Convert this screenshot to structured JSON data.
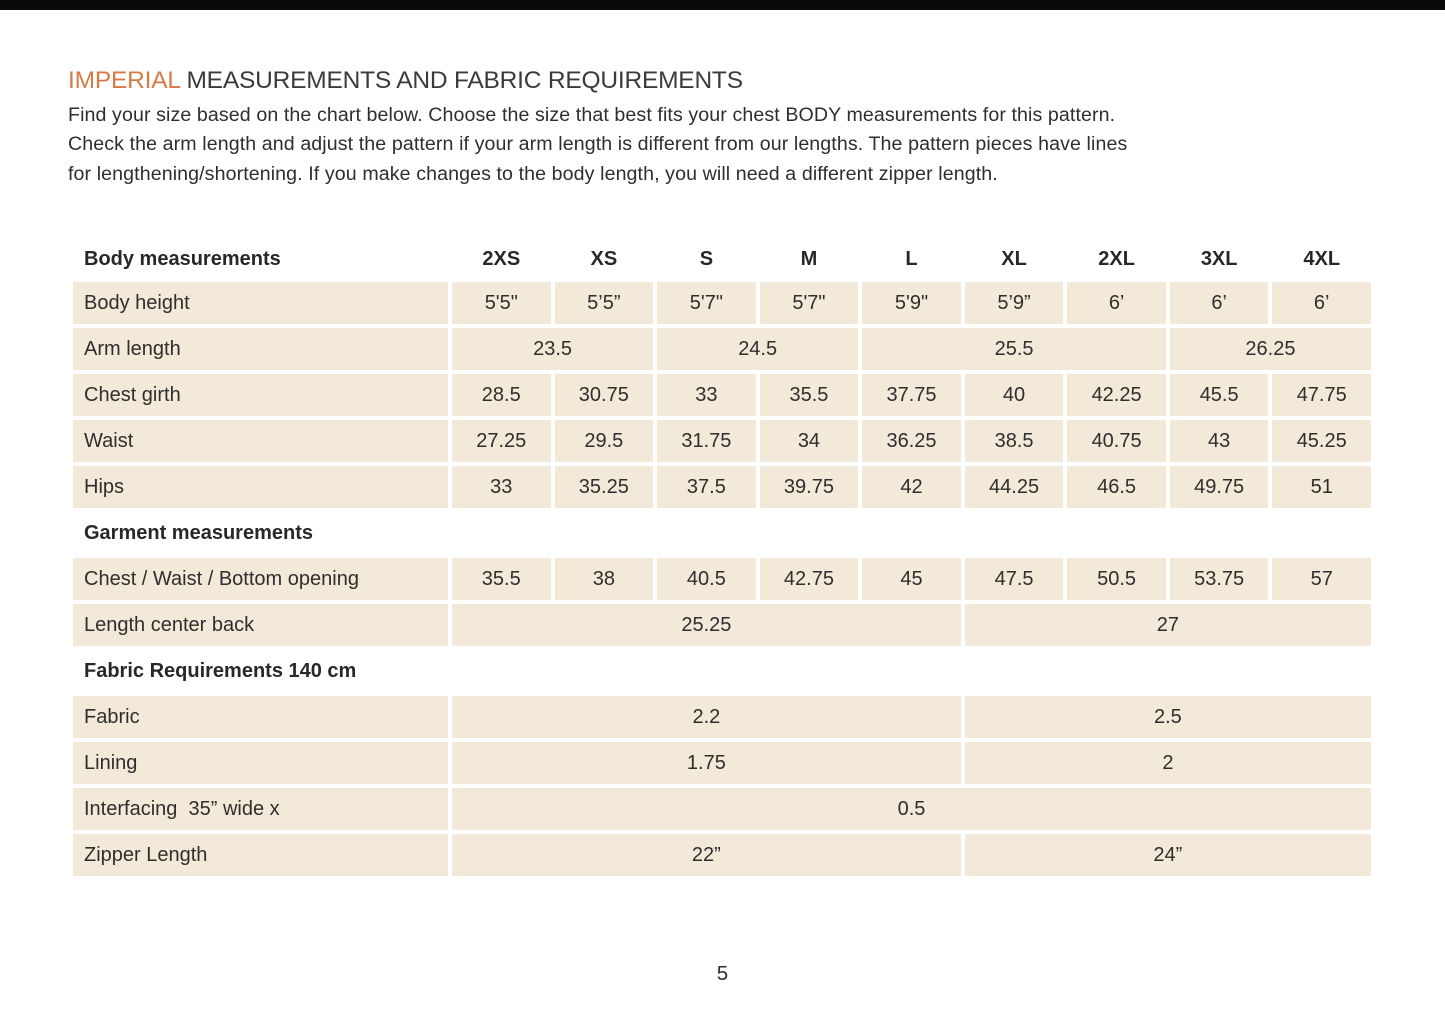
{
  "colors": {
    "accent_orange": "#D67B45",
    "cell_beige": "#F2E9D8",
    "top_bar_black": "#0A0A0A",
    "text_ink": "#2E2E2E"
  },
  "header": {
    "title_highlight": "IMPERIAL",
    "title_rest": "MEASUREMENTS AND FABRIC REQUIREMENTS",
    "intro_lines": [
      "Find your size based on the chart below. Choose the size that best fits your chest BODY measurements for this pattern.",
      "Check the arm length and adjust the pattern if your arm length is different from our lengths. The pattern pieces have lines",
      "for lengthening/shortening. If you make changes to the body length, you will need a different zipper length."
    ]
  },
  "table": {
    "header": {
      "label": "Body measurements",
      "sizes": [
        "2XS",
        "XS",
        "S",
        "M",
        "L",
        "XL",
        "2XL",
        "3XL",
        "4XL"
      ]
    },
    "items": [
      {
        "type": "row",
        "name": "body-height",
        "label": "Body height",
        "cells": [
          {
            "v": "5'5\"",
            "s": 1
          },
          {
            "v": "5’5”",
            "s": 1
          },
          {
            "v": "5'7\"",
            "s": 1
          },
          {
            "v": "5'7\"",
            "s": 1
          },
          {
            "v": "5'9\"",
            "s": 1
          },
          {
            "v": "5’9”",
            "s": 1
          },
          {
            "v": "6’",
            "s": 1
          },
          {
            "v": "6’",
            "s": 1
          },
          {
            "v": "6’",
            "s": 1
          }
        ]
      },
      {
        "type": "row",
        "name": "arm-length",
        "label": "Arm length",
        "cells": [
          {
            "v": "23.5",
            "s": 2
          },
          {
            "v": "24.5",
            "s": 2
          },
          {
            "v": "25.5",
            "s": 3
          },
          {
            "v": "26.25",
            "s": 2
          }
        ]
      },
      {
        "type": "row",
        "name": "chest-girth",
        "label": "Chest girth",
        "cells": [
          {
            "v": "28.5",
            "s": 1
          },
          {
            "v": "30.75",
            "s": 1
          },
          {
            "v": "33",
            "s": 1
          },
          {
            "v": "35.5",
            "s": 1
          },
          {
            "v": "37.75",
            "s": 1
          },
          {
            "v": "40",
            "s": 1
          },
          {
            "v": "42.25",
            "s": 1
          },
          {
            "v": "45.5",
            "s": 1
          },
          {
            "v": "47.75",
            "s": 1
          }
        ]
      },
      {
        "type": "row",
        "name": "waist",
        "label": "Waist",
        "cells": [
          {
            "v": "27.25",
            "s": 1
          },
          {
            "v": "29.5",
            "s": 1
          },
          {
            "v": "31.75",
            "s": 1
          },
          {
            "v": "34",
            "s": 1
          },
          {
            "v": "36.25",
            "s": 1
          },
          {
            "v": "38.5",
            "s": 1
          },
          {
            "v": "40.75",
            "s": 1
          },
          {
            "v": "43",
            "s": 1
          },
          {
            "v": "45.25",
            "s": 1
          }
        ]
      },
      {
        "type": "row",
        "name": "hips",
        "label": "Hips",
        "cells": [
          {
            "v": "33",
            "s": 1
          },
          {
            "v": "35.25",
            "s": 1
          },
          {
            "v": "37.5",
            "s": 1
          },
          {
            "v": "39.75",
            "s": 1
          },
          {
            "v": "42",
            "s": 1
          },
          {
            "v": "44.25",
            "s": 1
          },
          {
            "v": "46.5",
            "s": 1
          },
          {
            "v": "49.75",
            "s": 1
          },
          {
            "v": "51",
            "s": 1
          }
        ]
      },
      {
        "type": "section",
        "name": "garment-measurements",
        "label": "Garment measurements"
      },
      {
        "type": "row",
        "name": "chest-waist-bottom-opening",
        "label": "Chest / Waist / Bottom opening",
        "cells": [
          {
            "v": "35.5",
            "s": 1
          },
          {
            "v": "38",
            "s": 1
          },
          {
            "v": "40.5",
            "s": 1
          },
          {
            "v": "42.75",
            "s": 1
          },
          {
            "v": "45",
            "s": 1
          },
          {
            "v": "47.5",
            "s": 1
          },
          {
            "v": "50.5",
            "s": 1
          },
          {
            "v": "53.75",
            "s": 1
          },
          {
            "v": "57",
            "s": 1
          }
        ]
      },
      {
        "type": "row",
        "name": "length-center-back",
        "label": "Length center back",
        "cells": [
          {
            "v": "25.25",
            "s": 5
          },
          {
            "v": "27",
            "s": 4
          }
        ]
      },
      {
        "type": "section",
        "name": "fabric-requirements",
        "label": "Fabric Requirements 140 cm"
      },
      {
        "type": "row",
        "name": "fabric",
        "label": "Fabric",
        "cells": [
          {
            "v": "2.2",
            "s": 5
          },
          {
            "v": "2.5",
            "s": 4
          }
        ]
      },
      {
        "type": "row",
        "name": "lining",
        "label": "Lining",
        "cells": [
          {
            "v": "1.75",
            "s": 5
          },
          {
            "v": "2",
            "s": 4
          }
        ]
      },
      {
        "type": "row",
        "name": "interfacing",
        "label": "Interfacing  35” wide x",
        "cells": [
          {
            "v": "0.5",
            "s": 9
          }
        ]
      },
      {
        "type": "row",
        "name": "zipper-length",
        "label": "Zipper Length",
        "cells": [
          {
            "v": "22”",
            "s": 5
          },
          {
            "v": "24”",
            "s": 4
          }
        ]
      }
    ]
  },
  "footer": {
    "page_number": "5"
  }
}
